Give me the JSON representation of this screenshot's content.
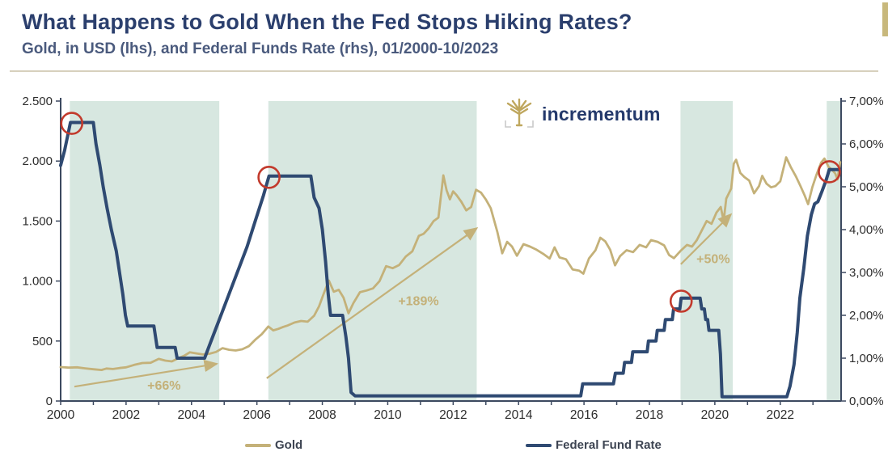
{
  "header": {
    "title": "What Happens to Gold When the Fed Stops Hiking Rates?",
    "subtitle": "Gold, in USD (lhs), and Federal Funds Rate (rhs), 01/2000-10/2023"
  },
  "logo": {
    "text": "incrementum"
  },
  "legend": {
    "items": [
      {
        "label": "Gold",
        "color": "#c4b179"
      },
      {
        "label": "Federal Fund Rate",
        "color": "#2f4a72"
      }
    ]
  },
  "colors": {
    "title_navy": "#2b3f6d",
    "subtitle_navy": "#4a5a7d",
    "gold_line": "#c4b179",
    "fed_line": "#2f4a72",
    "pause_band": "#d7e7e0",
    "marker_red": "#c23a2c",
    "axis": "#3c4960",
    "tick_text": "#2d2d2d",
    "divider_tan": "#d7d0bd",
    "edge_accent": "#c8b87c"
  },
  "chart_data": {
    "type": "line",
    "title": "What Happens to Gold When the Fed Stops Hiking Rates?",
    "subtitle": "Gold, in USD (lhs), and Federal Funds Rate (rhs), 01/2000-10/2023",
    "xlabel": "",
    "ylabel_left": "",
    "ylabel_right": "",
    "grid": false,
    "legend_position": "bottom",
    "band_color": "#d7e7e0",
    "x_axis": {
      "range": [
        2000,
        2023.86
      ],
      "minor_tick_interval_years": 1,
      "labeled_ticks": [
        {
          "year": 2000,
          "label": "2000"
        },
        {
          "year": 2002,
          "label": "2002"
        },
        {
          "year": 2004,
          "label": "2004"
        },
        {
          "year": 2006,
          "label": "2006"
        },
        {
          "year": 2008,
          "label": "2008"
        },
        {
          "year": 2010,
          "label": "2010"
        },
        {
          "year": 2012,
          "label": "2012"
        },
        {
          "year": 2014,
          "label": "2014"
        },
        {
          "year": 2016,
          "label": "2016"
        },
        {
          "year": 2018,
          "label": "2018"
        },
        {
          "year": 2020,
          "label": "2020"
        },
        {
          "year": 2022,
          "label": "2022"
        }
      ]
    },
    "left_axis": {
      "range": [
        0,
        2500
      ],
      "ticks": [
        {
          "value": 2500,
          "label": "2.500"
        },
        {
          "value": 2000,
          "label": "2.000"
        },
        {
          "value": 1500,
          "label": "1.500"
        },
        {
          "value": 1000,
          "label": "1.000"
        },
        {
          "value": 500,
          "label": "500"
        },
        {
          "value": 0,
          "label": "0"
        }
      ]
    },
    "right_axis": {
      "range": [
        0,
        7
      ],
      "ticks": [
        {
          "value": 7,
          "label": "7,00%"
        },
        {
          "value": 6,
          "label": "6,00%"
        },
        {
          "value": 5,
          "label": "5,00%"
        },
        {
          "value": 4,
          "label": "4,00%"
        },
        {
          "value": 3,
          "label": "3,00%"
        },
        {
          "value": 2,
          "label": "2,00%"
        },
        {
          "value": 1,
          "label": "1,00%"
        },
        {
          "value": 0,
          "label": "0,00%"
        }
      ]
    },
    "rate_pause_bands": [
      [
        2000.28,
        2004.85
      ],
      [
        2006.35,
        2012.72
      ],
      [
        2018.95,
        2020.55
      ],
      [
        2023.42,
        2023.86
      ]
    ],
    "pause_markers": {
      "color": "#c23a2c",
      "radius": 13,
      "points": [
        [
          2000.34,
          6.48
        ],
        [
          2006.37,
          5.22
        ],
        [
          2018.97,
          2.33
        ],
        [
          2023.5,
          5.35
        ]
      ]
    },
    "annotations": [
      {
        "label": "+66%",
        "from": [
          2000.42,
          120
        ],
        "to": [
          2004.77,
          310
        ],
        "label_at": [
          2003.16,
          95
        ]
      },
      {
        "label": "+189%",
        "from": [
          2006.3,
          190
        ],
        "to": [
          2012.72,
          1440
        ],
        "label_at": [
          2010.94,
          800
        ]
      },
      {
        "label": "+50%",
        "from": [
          2018.96,
          1140
        ],
        "to": [
          2020.49,
          1555
        ],
        "label_at": [
          2019.95,
          1150
        ]
      }
    ],
    "series": [
      {
        "name": "Gold",
        "axis": "left",
        "color": "#c4b179",
        "width": 2.8,
        "points": [
          [
            2000,
            283
          ],
          [
            2000.25,
            278
          ],
          [
            2000.5,
            281
          ],
          [
            2000.75,
            272
          ],
          [
            2001,
            265
          ],
          [
            2001.25,
            259
          ],
          [
            2001.4,
            271
          ],
          [
            2001.6,
            267
          ],
          [
            2001.8,
            275
          ],
          [
            2002,
            281
          ],
          [
            2002.25,
            301
          ],
          [
            2002.5,
            317
          ],
          [
            2002.75,
            319
          ],
          [
            2003,
            351
          ],
          [
            2003.2,
            337
          ],
          [
            2003.4,
            330
          ],
          [
            2003.6,
            357
          ],
          [
            2003.8,
            381
          ],
          [
            2003.95,
            406
          ],
          [
            2004.15,
            397
          ],
          [
            2004.35,
            388
          ],
          [
            2004.55,
            394
          ],
          [
            2004.75,
            409
          ],
          [
            2004.95,
            441
          ],
          [
            2005.15,
            427
          ],
          [
            2005.35,
            421
          ],
          [
            2005.55,
            431
          ],
          [
            2005.75,
            457
          ],
          [
            2005.95,
            511
          ],
          [
            2006.15,
            557
          ],
          [
            2006.35,
            621
          ],
          [
            2006.5,
            589
          ],
          [
            2006.65,
            601
          ],
          [
            2006.8,
            617
          ],
          [
            2006.95,
            631
          ],
          [
            2007.15,
            654
          ],
          [
            2007.35,
            667
          ],
          [
            2007.55,
            661
          ],
          [
            2007.75,
            711
          ],
          [
            2007.9,
            789
          ],
          [
            2008.05,
            901
          ],
          [
            2008.2,
            1004
          ],
          [
            2008.35,
            911
          ],
          [
            2008.5,
            927
          ],
          [
            2008.65,
            861
          ],
          [
            2008.8,
            731
          ],
          [
            2008.95,
            817
          ],
          [
            2009.15,
            907
          ],
          [
            2009.35,
            921
          ],
          [
            2009.55,
            939
          ],
          [
            2009.75,
            999
          ],
          [
            2009.95,
            1124
          ],
          [
            2010.15,
            1107
          ],
          [
            2010.35,
            1134
          ],
          [
            2010.55,
            1204
          ],
          [
            2010.75,
            1247
          ],
          [
            2010.95,
            1377
          ],
          [
            2011.1,
            1394
          ],
          [
            2011.25,
            1439
          ],
          [
            2011.4,
            1499
          ],
          [
            2011.55,
            1529
          ],
          [
            2011.7,
            1881
          ],
          [
            2011.8,
            1757
          ],
          [
            2011.9,
            1681
          ],
          [
            2012,
            1747
          ],
          [
            2012.1,
            1717
          ],
          [
            2012.25,
            1661
          ],
          [
            2012.4,
            1589
          ],
          [
            2012.55,
            1617
          ],
          [
            2012.7,
            1761
          ],
          [
            2012.85,
            1737
          ],
          [
            2013,
            1679
          ],
          [
            2013.15,
            1607
          ],
          [
            2013.35,
            1411
          ],
          [
            2013.5,
            1231
          ],
          [
            2013.65,
            1327
          ],
          [
            2013.8,
            1287
          ],
          [
            2013.95,
            1211
          ],
          [
            2014.15,
            1307
          ],
          [
            2014.35,
            1287
          ],
          [
            2014.55,
            1261
          ],
          [
            2014.75,
            1227
          ],
          [
            2014.95,
            1187
          ],
          [
            2015.1,
            1281
          ],
          [
            2015.25,
            1197
          ],
          [
            2015.45,
            1181
          ],
          [
            2015.65,
            1097
          ],
          [
            2015.85,
            1087
          ],
          [
            2015.98,
            1061
          ],
          [
            2016.15,
            1187
          ],
          [
            2016.35,
            1257
          ],
          [
            2016.5,
            1361
          ],
          [
            2016.65,
            1331
          ],
          [
            2016.8,
            1261
          ],
          [
            2016.95,
            1131
          ],
          [
            2017.1,
            1207
          ],
          [
            2017.3,
            1257
          ],
          [
            2017.5,
            1241
          ],
          [
            2017.7,
            1301
          ],
          [
            2017.9,
            1281
          ],
          [
            2018.05,
            1341
          ],
          [
            2018.25,
            1327
          ],
          [
            2018.45,
            1297
          ],
          [
            2018.6,
            1217
          ],
          [
            2018.75,
            1191
          ],
          [
            2018.95,
            1251
          ],
          [
            2019.15,
            1301
          ],
          [
            2019.3,
            1287
          ],
          [
            2019.45,
            1341
          ],
          [
            2019.6,
            1421
          ],
          [
            2019.75,
            1501
          ],
          [
            2019.9,
            1477
          ],
          [
            2020.05,
            1571
          ],
          [
            2020.18,
            1617
          ],
          [
            2020.27,
            1501
          ],
          [
            2020.35,
            1687
          ],
          [
            2020.5,
            1771
          ],
          [
            2020.58,
            1977
          ],
          [
            2020.65,
            2011
          ],
          [
            2020.78,
            1901
          ],
          [
            2020.9,
            1867
          ],
          [
            2021.05,
            1837
          ],
          [
            2021.2,
            1731
          ],
          [
            2021.35,
            1791
          ],
          [
            2021.45,
            1877
          ],
          [
            2021.58,
            1811
          ],
          [
            2021.72,
            1781
          ],
          [
            2021.85,
            1791
          ],
          [
            2022,
            1831
          ],
          [
            2022.18,
            2031
          ],
          [
            2022.32,
            1951
          ],
          [
            2022.48,
            1871
          ],
          [
            2022.62,
            1791
          ],
          [
            2022.75,
            1711
          ],
          [
            2022.85,
            1641
          ],
          [
            2022.98,
            1781
          ],
          [
            2023.1,
            1881
          ],
          [
            2023.25,
            1987
          ],
          [
            2023.35,
            2021
          ],
          [
            2023.48,
            1951
          ],
          [
            2023.58,
            1927
          ],
          [
            2023.68,
            1897
          ],
          [
            2023.75,
            1847
          ],
          [
            2023.83,
            1991
          ]
        ]
      },
      {
        "name": "Federal Fund Rate",
        "axis": "right",
        "color": "#2f4a72",
        "width": 4,
        "points": [
          [
            2000,
            5.5
          ],
          [
            2000.12,
            5.85
          ],
          [
            2000.3,
            6.5
          ],
          [
            2001,
            6.5
          ],
          [
            2001.08,
            6
          ],
          [
            2001.2,
            5.5
          ],
          [
            2001.3,
            5
          ],
          [
            2001.42,
            4.5
          ],
          [
            2001.55,
            4
          ],
          [
            2001.7,
            3.5
          ],
          [
            2001.8,
            3
          ],
          [
            2001.9,
            2.5
          ],
          [
            2001.98,
            2
          ],
          [
            2002.05,
            1.75
          ],
          [
            2002.85,
            1.75
          ],
          [
            2002.95,
            1.25
          ],
          [
            2003.5,
            1.25
          ],
          [
            2003.56,
            1
          ],
          [
            2004.4,
            1
          ],
          [
            2004.55,
            1.3
          ],
          [
            2004.75,
            1.7
          ],
          [
            2004.95,
            2.1
          ],
          [
            2005.2,
            2.6
          ],
          [
            2005.45,
            3.1
          ],
          [
            2005.7,
            3.6
          ],
          [
            2005.95,
            4.2
          ],
          [
            2006.2,
            4.8
          ],
          [
            2006.37,
            5.25
          ],
          [
            2007.65,
            5.25
          ],
          [
            2007.75,
            4.75
          ],
          [
            2007.9,
            4.5
          ],
          [
            2008,
            4
          ],
          [
            2008.1,
            3.25
          ],
          [
            2008.18,
            2.5
          ],
          [
            2008.25,
            2
          ],
          [
            2008.62,
            2
          ],
          [
            2008.72,
            1.5
          ],
          [
            2008.8,
            1
          ],
          [
            2008.88,
            0.2
          ],
          [
            2009,
            0.12
          ],
          [
            2015.9,
            0.12
          ],
          [
            2015.96,
            0.4
          ],
          [
            2016.9,
            0.4
          ],
          [
            2016.96,
            0.65
          ],
          [
            2017.2,
            0.65
          ],
          [
            2017.24,
            0.9
          ],
          [
            2017.45,
            0.9
          ],
          [
            2017.49,
            1.15
          ],
          [
            2017.93,
            1.15
          ],
          [
            2017.97,
            1.4
          ],
          [
            2018.2,
            1.4
          ],
          [
            2018.24,
            1.65
          ],
          [
            2018.45,
            1.65
          ],
          [
            2018.49,
            1.9
          ],
          [
            2018.7,
            1.9
          ],
          [
            2018.74,
            2.15
          ],
          [
            2018.93,
            2.15
          ],
          [
            2018.97,
            2.4
          ],
          [
            2019.55,
            2.4
          ],
          [
            2019.6,
            2.15
          ],
          [
            2019.68,
            2.15
          ],
          [
            2019.72,
            1.9
          ],
          [
            2019.78,
            1.9
          ],
          [
            2019.82,
            1.65
          ],
          [
            2020.12,
            1.65
          ],
          [
            2020.17,
            1.1
          ],
          [
            2020.22,
            0.1
          ],
          [
            2022.2,
            0.1
          ],
          [
            2022.3,
            0.35
          ],
          [
            2022.42,
            0.85
          ],
          [
            2022.52,
            1.6
          ],
          [
            2022.6,
            2.4
          ],
          [
            2022.72,
            3.1
          ],
          [
            2022.83,
            3.85
          ],
          [
            2022.95,
            4.35
          ],
          [
            2023.05,
            4.6
          ],
          [
            2023.15,
            4.65
          ],
          [
            2023.28,
            4.9
          ],
          [
            2023.4,
            5.15
          ],
          [
            2023.5,
            5.4
          ],
          [
            2023.83,
            5.4
          ]
        ]
      }
    ]
  }
}
